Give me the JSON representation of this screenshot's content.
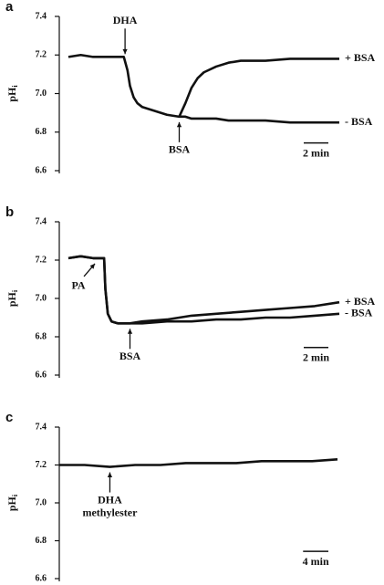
{
  "chart_data": [
    {
      "type": "line",
      "panel": "a",
      "ylabel_main": "pH",
      "ylabel_subscript": "i",
      "x": [
        0,
        1,
        2,
        3,
        4,
        4.5,
        4.8,
        5,
        5.3,
        5.6,
        6,
        7,
        8,
        9,
        9.5,
        10,
        10.5,
        11,
        12,
        13,
        14,
        16,
        18,
        20,
        22
      ],
      "series": [
        {
          "name": "+ BSA",
          "color": "#111111",
          "values": [
            null,
            null,
            null,
            null,
            null,
            null,
            null,
            null,
            null,
            null,
            null,
            null,
            null,
            6.88,
            6.95,
            7.03,
            7.08,
            7.11,
            7.14,
            7.16,
            7.17,
            7.17,
            7.18,
            7.18,
            7.18
          ]
        },
        {
          "name": "- BSA",
          "color": "#111111",
          "values": [
            7.19,
            7.2,
            7.19,
            7.19,
            7.19,
            7.19,
            7.12,
            7.04,
            6.98,
            6.95,
            6.93,
            6.91,
            6.89,
            6.88,
            6.88,
            6.87,
            6.87,
            6.87,
            6.87,
            6.86,
            6.86,
            6.86,
            6.85,
            6.85,
            6.85
          ]
        }
      ],
      "xlim": [
        0,
        22
      ],
      "ylim": [
        6.6,
        7.4
      ],
      "yticks": [
        6.6,
        6.8,
        {
          "value": 7,
          "label": "7.0"
        },
        7.2,
        7.4
      ],
      "scale_bar": {
        "value": 2,
        "label": "2 min"
      },
      "annotations": [
        {
          "text": [
            "DHA"
          ],
          "x": 4.6,
          "position": "above"
        },
        {
          "text": [
            "BSA"
          ],
          "x": 9,
          "position": "below"
        }
      ]
    },
    {
      "type": "line",
      "panel": "b",
      "ylabel_main": "pH",
      "ylabel_subscript": "i",
      "x": [
        0,
        1,
        2,
        2.9,
        3,
        3.2,
        3.5,
        4,
        5,
        6,
        8,
        10,
        12,
        14,
        16,
        18,
        20,
        22
      ],
      "series": [
        {
          "name": "+ BSA",
          "color": "#111111",
          "values": [
            7.21,
            7.22,
            7.21,
            7.21,
            7.05,
            6.92,
            6.88,
            6.87,
            6.87,
            6.88,
            6.89,
            6.91,
            6.92,
            6.93,
            6.94,
            6.95,
            6.96,
            6.98
          ]
        },
        {
          "name": "- BSA",
          "color": "#111111",
          "values": [
            7.21,
            7.22,
            7.21,
            7.21,
            7.05,
            6.92,
            6.88,
            6.87,
            6.87,
            6.87,
            6.88,
            6.88,
            6.89,
            6.89,
            6.9,
            6.9,
            6.91,
            6.92
          ]
        }
      ],
      "xlim": [
        0,
        22
      ],
      "ylim": [
        6.6,
        7.4
      ],
      "yticks": [
        6.6,
        6.8,
        {
          "value": 7,
          "label": "7.0"
        },
        7.2,
        7.4
      ],
      "scale_bar": {
        "value": 2,
        "label": "2 min"
      },
      "annotations": [
        {
          "text": [
            "PA"
          ],
          "x": 2.3,
          "position": "below-left"
        },
        {
          "text": [
            "BSA"
          ],
          "x": 5,
          "position": "below"
        }
      ]
    },
    {
      "type": "line",
      "panel": "c",
      "ylabel_main": "pH",
      "ylabel_subscript": "i",
      "x": [
        0,
        4,
        8,
        12,
        16,
        20,
        24,
        28,
        32,
        36,
        40,
        44
      ],
      "series": [
        {
          "color": "#111111",
          "values": [
            7.2,
            7.2,
            7.19,
            7.2,
            7.2,
            7.21,
            7.21,
            7.21,
            7.22,
            7.22,
            7.22,
            7.23
          ]
        }
      ],
      "xlim": [
        0,
        44
      ],
      "ylim": [
        6.6,
        7.4
      ],
      "yticks": [
        6.6,
        6.8,
        {
          "value": 7,
          "label": "7.0"
        },
        7.2,
        7.4
      ],
      "scale_bar": {
        "value": 4,
        "label": "4 min"
      },
      "annotations": [
        {
          "text": [
            "DHA",
            "methylester"
          ],
          "x": 8,
          "position": "below"
        }
      ]
    }
  ]
}
